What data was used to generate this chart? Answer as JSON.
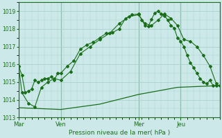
{
  "title": "Pression niveau de la mer( hPa )",
  "bg_color": "#cce8e8",
  "grid_color": "#aad0d0",
  "line_color": "#1a6e1a",
  "ylim": [
    1013,
    1019.5
  ],
  "yticks": [
    1013,
    1014,
    1015,
    1016,
    1017,
    1018,
    1019
  ],
  "xtick_labels": [
    "Mar",
    "Ven",
    "Mer",
    "Jeu"
  ],
  "xtick_positions": [
    0,
    13,
    37,
    50
  ],
  "vlines": [
    0,
    13,
    37,
    50
  ],
  "series1_x": [
    0,
    1,
    2,
    3,
    4,
    5,
    6,
    7,
    8,
    9,
    10,
    11,
    12,
    13,
    15,
    17,
    19,
    21,
    23,
    25,
    27,
    29,
    31,
    33,
    35,
    37,
    38,
    39,
    40,
    41,
    42,
    43,
    44,
    45,
    46,
    47,
    48,
    49,
    50,
    51,
    52,
    53,
    54,
    55,
    56,
    57,
    58,
    59,
    60,
    61,
    62
  ],
  "series1_y": [
    1015.9,
    1015.4,
    1014.4,
    1014.5,
    1014.6,
    1015.1,
    1015.0,
    1015.1,
    1015.2,
    1015.2,
    1015.3,
    1015.1,
    1015.5,
    1015.5,
    1015.9,
    1016.2,
    1016.85,
    1017.1,
    1017.25,
    1017.5,
    1017.75,
    1017.8,
    1018.0,
    1018.6,
    1018.8,
    1018.85,
    1018.5,
    1018.2,
    1018.15,
    1018.55,
    1018.9,
    1019.0,
    1018.85,
    1018.75,
    1018.5,
    1018.2,
    1018.05,
    1017.5,
    1017.3,
    1017.0,
    1016.5,
    1016.1,
    1015.8,
    1015.5,
    1015.2,
    1015.0,
    1014.9,
    1015.1,
    1014.8,
    1014.8,
    1014.8
  ],
  "series2_x": [
    0,
    1,
    3,
    5,
    7,
    9,
    11,
    13,
    16,
    19,
    22,
    25,
    28,
    31,
    34,
    37,
    39,
    41,
    43,
    45,
    47,
    49,
    51,
    53,
    55,
    57,
    59,
    61
  ],
  "series2_y": [
    1015.9,
    1014.4,
    1013.8,
    1013.6,
    1014.7,
    1015.0,
    1015.2,
    1015.1,
    1015.6,
    1016.6,
    1017.0,
    1017.4,
    1017.75,
    1018.3,
    1018.7,
    1018.8,
    1018.3,
    1018.2,
    1018.5,
    1018.85,
    1018.6,
    1018.2,
    1017.4,
    1017.3,
    1017.0,
    1016.5,
    1015.9,
    1014.9
  ],
  "series3_x": [
    0,
    13,
    25,
    37,
    49,
    62
  ],
  "series3_y": [
    1013.55,
    1013.45,
    1013.75,
    1014.3,
    1014.7,
    1014.8
  ],
  "xlim": [
    0,
    62
  ]
}
